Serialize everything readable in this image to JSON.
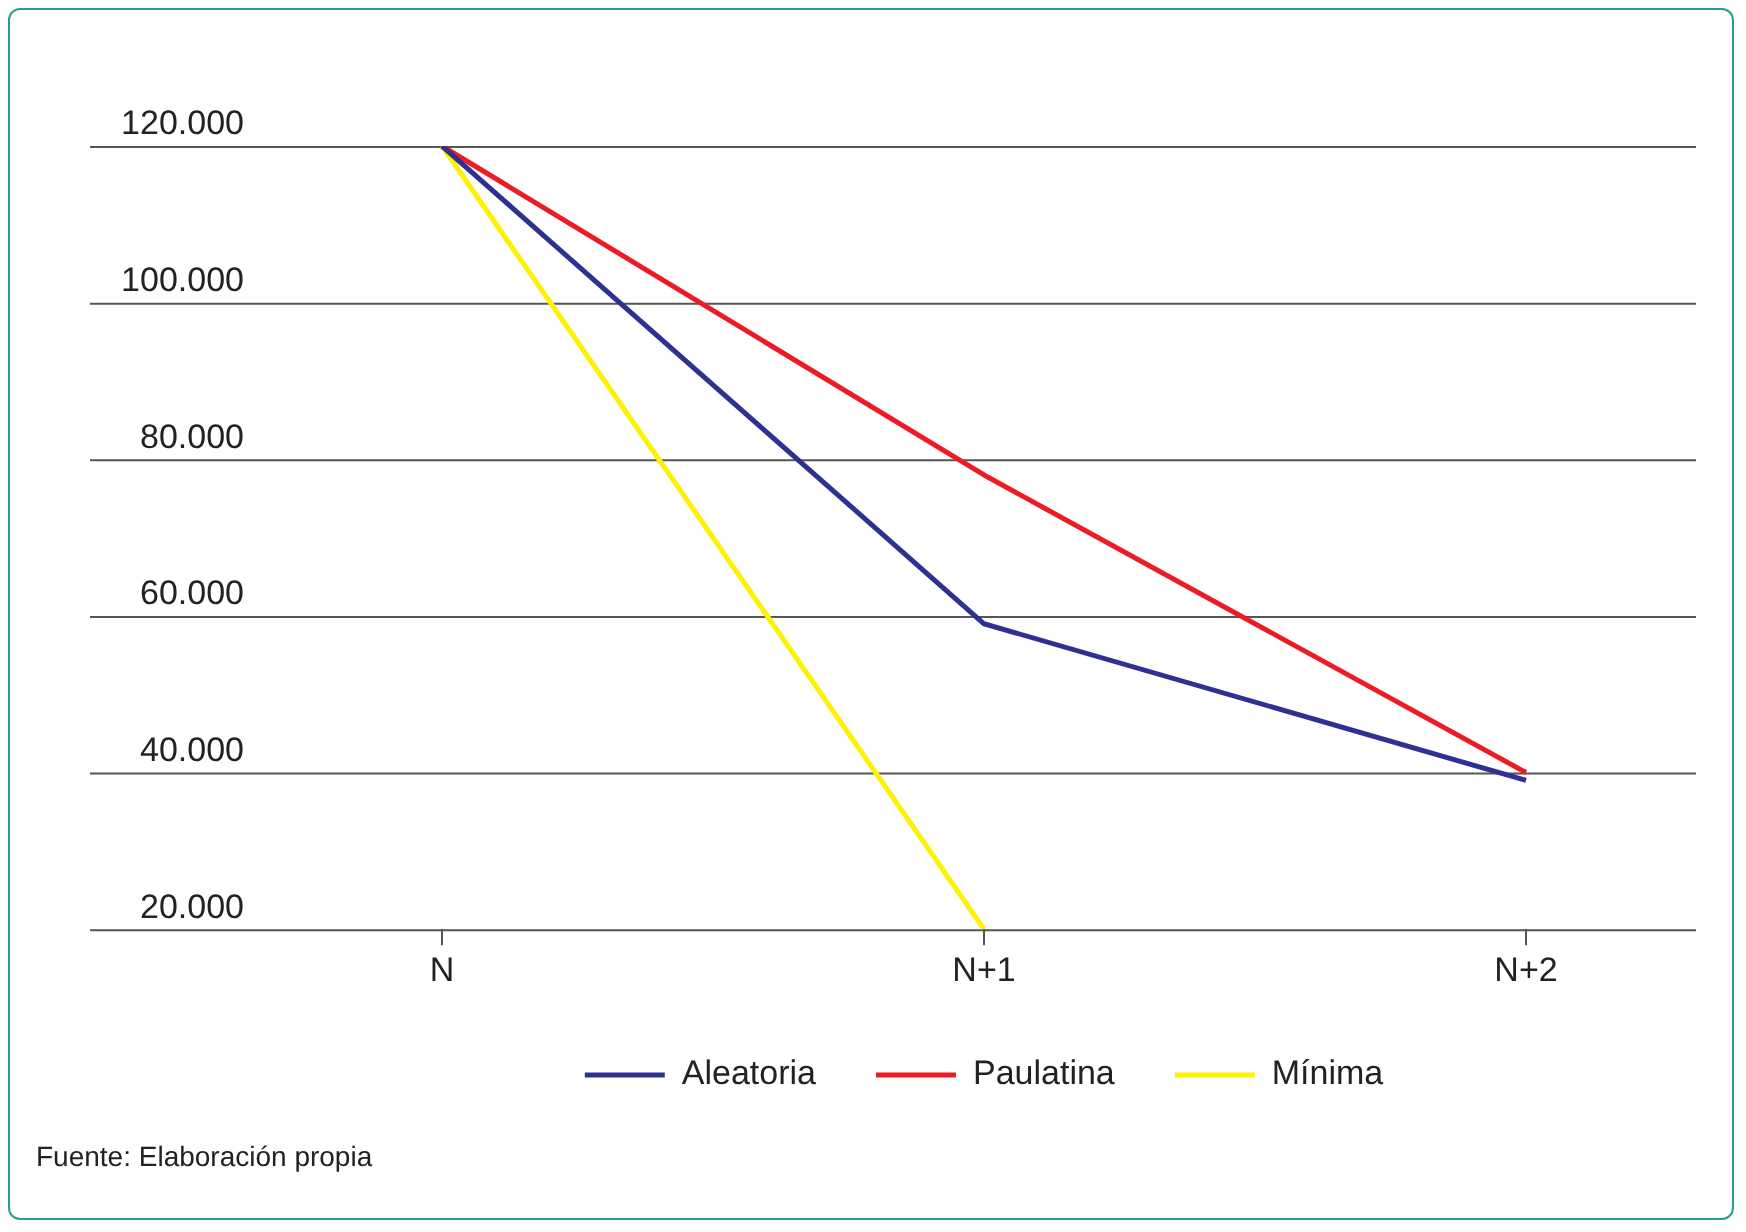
{
  "chart_data": {
    "type": "line",
    "categories": [
      "N",
      "N+1",
      "N+2"
    ],
    "series": [
      {
        "name": "Aleatoria",
        "color": "#2e3192",
        "values": [
          120000,
          59000,
          39000
        ]
      },
      {
        "name": "Paulatina",
        "color": "#ed1c24",
        "values": [
          120000,
          78000,
          40000
        ]
      },
      {
        "name": "Mínima",
        "color": "#fff200",
        "values": [
          120000,
          20000,
          null
        ]
      }
    ],
    "ylim": [
      20000,
      120000
    ],
    "yticks": [
      {
        "value": 20000,
        "label": "20.000"
      },
      {
        "value": 40000,
        "label": "40.000"
      },
      {
        "value": 60000,
        "label": "60.000"
      },
      {
        "value": 80000,
        "label": "80.000"
      },
      {
        "value": 100000,
        "label": "100.000"
      },
      {
        "value": 120000,
        "label": "120.000"
      }
    ],
    "grid": "y",
    "legend": "bottom",
    "marker": "none",
    "line_style": "solid",
    "annotations": [
      "Fuente: Elaboración propia"
    ]
  }
}
